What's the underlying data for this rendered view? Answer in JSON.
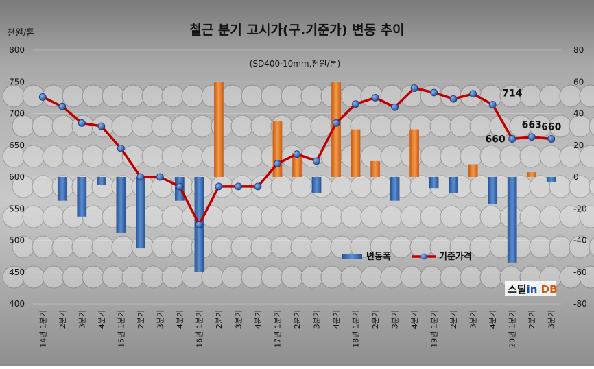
{
  "chart_data": {
    "type": "bar+line",
    "title": "철근 분기 고시가(구.기준가) 변동 추이",
    "subtitle": "(SD400·10mm,천원/톤)",
    "left_axis_label": "천원/톤",
    "left_axis": {
      "min": 400,
      "max": 800,
      "ticks": [
        400,
        450,
        500,
        550,
        600,
        650,
        700,
        750,
        800
      ]
    },
    "right_axis": {
      "min": -80,
      "max": 80,
      "ticks": [
        -80,
        -60,
        -40,
        -20,
        0,
        20,
        40,
        60,
        80
      ]
    },
    "categories": [
      "14년 1분기",
      "2분기",
      "3분기",
      "4분기",
      "15년 1분기",
      "2분기",
      "3분기",
      "4분기",
      "16년 1분기",
      "2분기",
      "3분기",
      "4분기",
      "17년 1분기",
      "2분기",
      "3분기",
      "4분기",
      "18년 1분기",
      "2분기",
      "3분기",
      "4분기",
      "19년 1분기",
      "2분기",
      "3분기",
      "4분기",
      "20년 1분기",
      "2분기",
      "3분기"
    ],
    "series": [
      {
        "name": "변동폭",
        "kind": "bar",
        "axis": "right",
        "values": [
          0,
          -15,
          -25,
          -5,
          -35,
          -45,
          0,
          -15,
          -60,
          60,
          0,
          0,
          35,
          15,
          -10,
          60,
          30,
          10,
          -15,
          30,
          -7,
          -10,
          8,
          -17,
          -54,
          3,
          -3
        ]
      },
      {
        "name": "기준가격",
        "kind": "line",
        "axis": "left",
        "values": [
          726,
          711,
          685,
          680,
          645,
          600,
          600,
          585,
          525,
          585,
          585,
          585,
          621,
          636,
          625,
          685,
          715,
          725,
          710,
          740,
          733,
          723,
          731,
          714,
          660,
          663,
          660
        ]
      }
    ],
    "data_labels": [
      {
        "index": 23,
        "series": "기준가격",
        "text": "714"
      },
      {
        "index": 24,
        "series": "기준가격",
        "text": "660"
      },
      {
        "index": 25,
        "series": "기준가격",
        "text": "663"
      },
      {
        "index": 26,
        "series": "기준가격",
        "text": "660"
      }
    ],
    "legend_position": "bottom-right",
    "watermark": "스틸in DB",
    "colors": {
      "bar_positive": "#e8792a",
      "bar_negative": "#3f6fb8",
      "line": "#c00000",
      "marker": "#2f5fa8"
    }
  }
}
